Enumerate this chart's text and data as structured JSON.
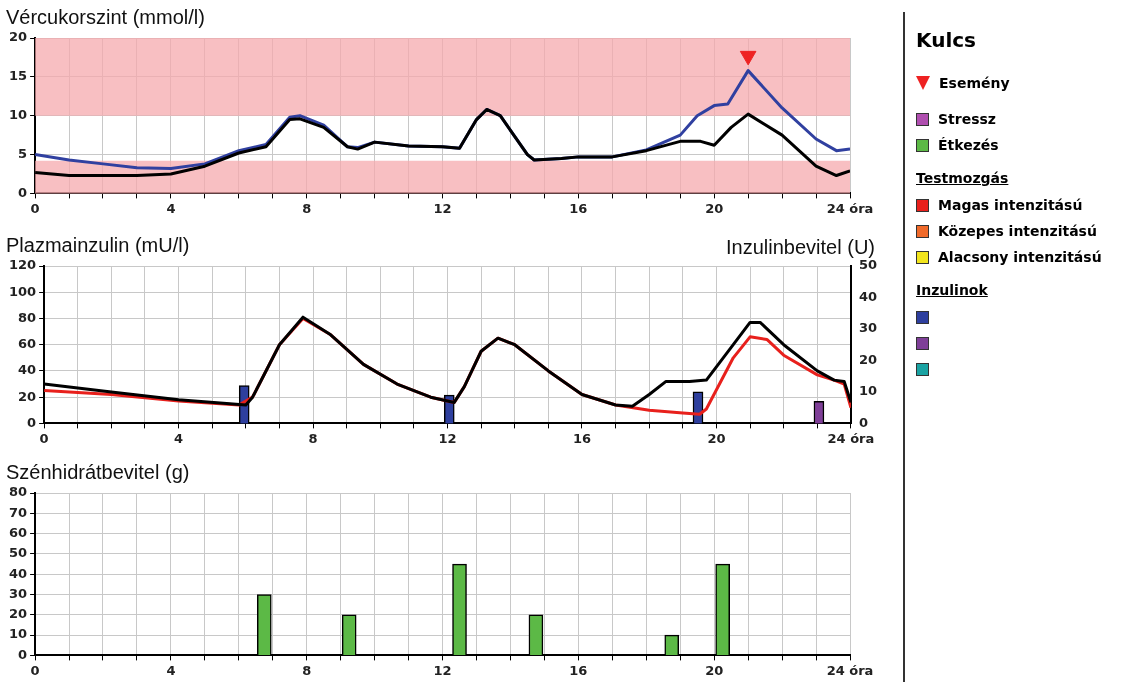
{
  "chart_data": [
    {
      "type": "line",
      "title": "Vércukorszint (mmol/l)",
      "xlim": [
        0,
        24
      ],
      "ylim": [
        0,
        20
      ],
      "xticks": [
        0,
        {
          "value": 1,
          "label": null
        },
        {
          "value": 2,
          "label": null
        },
        {
          "value": 3,
          "label": null
        },
        4,
        {
          "value": 5,
          "label": null
        },
        {
          "value": 6,
          "label": null
        },
        {
          "value": 7,
          "label": null
        },
        8,
        {
          "value": 9,
          "label": null
        },
        {
          "value": 10,
          "label": null
        },
        {
          "value": 11,
          "label": null
        },
        12,
        {
          "value": 13,
          "label": null
        },
        {
          "value": 14,
          "label": null
        },
        {
          "value": 15,
          "label": null
        },
        16,
        {
          "value": 17,
          "label": null
        },
        {
          "value": 18,
          "label": null
        },
        {
          "value": 19,
          "label": null
        },
        20,
        {
          "value": 21,
          "label": null
        },
        {
          "value": 22,
          "label": null
        },
        {
          "value": 23,
          "label": null
        },
        {
          "value": 24,
          "label": "24 óra"
        }
      ],
      "yticks": [
        0,
        5,
        10,
        15,
        20
      ],
      "grid": true,
      "marker": "none",
      "bands": [
        {
          "axis": "y",
          "from": 10,
          "to": 20,
          "color": "#f5a9ae"
        },
        {
          "axis": "y",
          "from": 0,
          "to": 4.2,
          "color": "#f5a9ae"
        }
      ],
      "series": [
        {
          "color": "#000000",
          "x": [
            0,
            1,
            3,
            4,
            5,
            6,
            6.8,
            7.5,
            7.8,
            8.5,
            9.2,
            9.5,
            10,
            11,
            12,
            12.5,
            13,
            13.3,
            13.7,
            14.5,
            14.7,
            15.5,
            16,
            17,
            18,
            19,
            19.6,
            20,
            20.5,
            21,
            22,
            23,
            23.6,
            24
          ],
          "values": [
            2.7,
            2.3,
            2.3,
            2.5,
            3.5,
            5.2,
            6,
            9.5,
            9.6,
            8.5,
            6,
            5.7,
            6.6,
            6.1,
            6,
            5.8,
            9.5,
            10.8,
            10,
            5,
            4.3,
            4.5,
            4.7,
            4.7,
            5.5,
            6.7,
            6.7,
            6.2,
            8.5,
            10.2,
            7.5,
            3.5,
            2.3,
            2.9
          ]
        },
        {
          "color": "#3040a0",
          "x": [
            0,
            1,
            2,
            3,
            4,
            5,
            6,
            6.8,
            7.5,
            7.8,
            8.5,
            9.2,
            9.5,
            10,
            11,
            12,
            12.5,
            13,
            13.3,
            13.7,
            14.5,
            14.7,
            15.5,
            16,
            17,
            18,
            19,
            19.5,
            20,
            20.4,
            21,
            22,
            23,
            23.6,
            24
          ],
          "values": [
            5,
            4.3,
            3.8,
            3.3,
            3.2,
            3.8,
            5.5,
            6.3,
            9.8,
            10,
            8.8,
            6,
            5.9,
            6.6,
            6.1,
            6,
            5.8,
            9.5,
            10.8,
            10,
            5,
            4.3,
            4.5,
            4.7,
            4.7,
            5.6,
            7.5,
            10,
            11.3,
            11.5,
            15.8,
            11,
            7,
            5.5,
            5.7
          ]
        },
        {
          "type": "scatter",
          "marker": "triangle",
          "color": "#ee2222",
          "x": [
            21
          ],
          "values": [
            17.7
          ]
        }
      ]
    },
    {
      "type": "line",
      "title": "Plazmainzulin (mU/l)",
      "y2label": "Inzulinbevitel (U)",
      "xlim": [
        0,
        24
      ],
      "ylim": [
        0,
        120
      ],
      "y2lim": [
        0,
        50
      ],
      "xticks": [
        0,
        {
          "value": 1,
          "label": null
        },
        {
          "value": 2,
          "label": null
        },
        {
          "value": 3,
          "label": null
        },
        4,
        {
          "value": 5,
          "label": null
        },
        {
          "value": 6,
          "label": null
        },
        {
          "value": 7,
          "label": null
        },
        8,
        {
          "value": 9,
          "label": null
        },
        {
          "value": 10,
          "label": null
        },
        {
          "value": 11,
          "label": null
        },
        12,
        {
          "value": 13,
          "label": null
        },
        {
          "value": 14,
          "label": null
        },
        {
          "value": 15,
          "label": null
        },
        16,
        {
          "value": 17,
          "label": null
        },
        {
          "value": 18,
          "label": null
        },
        {
          "value": 19,
          "label": null
        },
        20,
        {
          "value": 21,
          "label": null
        },
        {
          "value": 22,
          "label": null
        },
        {
          "value": 23,
          "label": null
        },
        {
          "value": 24,
          "label": "24 óra"
        }
      ],
      "yticks": [
        0,
        20,
        40,
        60,
        80,
        100,
        120
      ],
      "y2ticks": [
        0,
        10,
        20,
        30,
        40,
        50
      ],
      "grid": true,
      "marker": "none",
      "series": [
        {
          "color": "#000000",
          "x": [
            0,
            2,
            4,
            6,
            6.2,
            7,
            7.7,
            8.5,
            9.5,
            10.5,
            11.5,
            12.2,
            12.5,
            13,
            13.5,
            14,
            15,
            16,
            17,
            17.5,
            18,
            18.5,
            19.2,
            19.7,
            20.5,
            21,
            21.3,
            22,
            23,
            23.5,
            23.8,
            24
          ],
          "values": [
            30,
            24,
            18,
            14,
            20,
            60,
            81,
            68,
            45,
            30,
            20,
            16,
            28,
            55,
            65,
            60,
            40,
            22,
            14,
            13,
            22,
            32,
            32,
            33,
            60,
            77,
            77,
            60,
            40,
            33,
            32,
            16
          ]
        },
        {
          "color": "#e8201c",
          "x": [
            0,
            2,
            4,
            5.8,
            6.2,
            7,
            7.7,
            8.5,
            9.5,
            10.5,
            11.5,
            12.2,
            12.5,
            13,
            13.5,
            14,
            15,
            16,
            17,
            18,
            19,
            19.5,
            19.7,
            20.5,
            21,
            21.5,
            22,
            23,
            23.5,
            23.8,
            24
          ],
          "values": [
            25,
            22,
            17,
            14,
            20,
            60,
            80,
            68,
            45,
            30,
            20,
            16,
            28,
            55,
            65,
            60,
            40,
            22,
            14,
            10,
            8,
            7,
            11,
            50,
            66,
            64,
            52,
            37,
            33,
            30,
            12
          ]
        },
        {
          "type": "bar",
          "axis": "y2",
          "color": "#2e3f9e",
          "x": [
            6.1,
            12.2,
            19.6
          ],
          "values": [
            12,
            9,
            10
          ]
        },
        {
          "type": "bar",
          "axis": "y2",
          "color": "#7f3f98",
          "x": [
            22.9
          ],
          "values": [
            7
          ]
        }
      ]
    },
    {
      "type": "bar",
      "title": "Szénhidrátbevitel (g)",
      "xlim": [
        0,
        24
      ],
      "ylim": [
        0,
        80
      ],
      "xticks": [
        0,
        {
          "value": 1,
          "label": null
        },
        {
          "value": 2,
          "label": null
        },
        {
          "value": 3,
          "label": null
        },
        4,
        {
          "value": 5,
          "label": null
        },
        {
          "value": 6,
          "label": null
        },
        {
          "value": 7,
          "label": null
        },
        8,
        {
          "value": 9,
          "label": null
        },
        {
          "value": 10,
          "label": null
        },
        {
          "value": 11,
          "label": null
        },
        12,
        {
          "value": 13,
          "label": null
        },
        {
          "value": 14,
          "label": null
        },
        {
          "value": 15,
          "label": null
        },
        16,
        {
          "value": 17,
          "label": null
        },
        {
          "value": 18,
          "label": null
        },
        {
          "value": 19,
          "label": null
        },
        20,
        {
          "value": 21,
          "label": null
        },
        {
          "value": 22,
          "label": null
        },
        {
          "value": 23,
          "label": null
        },
        {
          "value": 24,
          "label": "24 óra"
        }
      ],
      "yticks": [
        0,
        10,
        20,
        30,
        40,
        50,
        60,
        70,
        80
      ],
      "grid": true,
      "series": [
        {
          "color": "#5cb946",
          "x": [
            6.75,
            9.25,
            12.5,
            14.75,
            18.75,
            20.25
          ],
          "values": [
            30,
            20,
            45,
            20,
            10,
            45
          ]
        }
      ]
    },
    {
      "type": "other",
      "title": "Kulcs",
      "categories": [
        "Esemény",
        "Stressz",
        "Étkezés",
        "Magas intenzitású",
        "Közepes intenzitású",
        "Alacsony intenzitású",
        null,
        null,
        null
      ],
      "colors": [
        "#ee2222",
        "#b04fb0",
        "#5cb946",
        "#e8201c",
        "#f06a2a",
        "#f2e51d",
        "#2e3f9e",
        "#7f3f98",
        "#1aa3a3"
      ],
      "annotations": [
        "Testmozgás",
        "Inzulinok"
      ]
    }
  ]
}
